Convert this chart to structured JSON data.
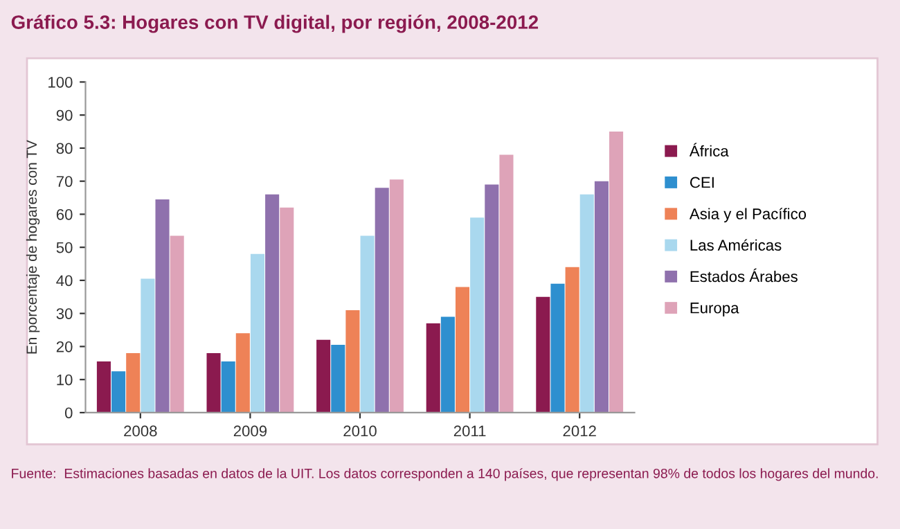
{
  "chart_data": {
    "type": "bar",
    "title": "Gráfico 5.3: Hogares con TV digital, por región, 2008-2012",
    "ylabel": "En porcentaje de hogares con TV",
    "categories": [
      "2008",
      "2009",
      "2010",
      "2011",
      "2012"
    ],
    "series": [
      {
        "name": "África",
        "color": "#8b1a4f",
        "values": [
          15.5,
          18,
          22,
          27,
          35
        ]
      },
      {
        "name": "CEI",
        "color": "#2e8fcf",
        "values": [
          12.5,
          15.5,
          20.5,
          29,
          39
        ]
      },
      {
        "name": "Asia y el Pacífico",
        "color": "#ee8257",
        "values": [
          18,
          24,
          31,
          38,
          44
        ]
      },
      {
        "name": "Las Américas",
        "color": "#a9d8ee",
        "values": [
          40.5,
          48,
          53.5,
          59,
          66
        ]
      },
      {
        "name": "Estados Árabes",
        "color": "#8f71ad",
        "values": [
          64.5,
          66,
          68,
          69,
          70
        ]
      },
      {
        "name": "Europa",
        "color": "#dea3b8",
        "values": [
          53.5,
          62,
          70.5,
          78,
          85
        ]
      }
    ],
    "ylim": [
      0,
      100
    ],
    "yticks": [
      0,
      10,
      20,
      30,
      40,
      50,
      60,
      70,
      80,
      90,
      100
    ],
    "grid": false,
    "legend": "right",
    "annotations": [
      "Fuente:  Estimaciones basadas en datos de la UIT. Los datos corresponden a 140 países, que representan 98% de todos los hogares del mundo."
    ]
  }
}
